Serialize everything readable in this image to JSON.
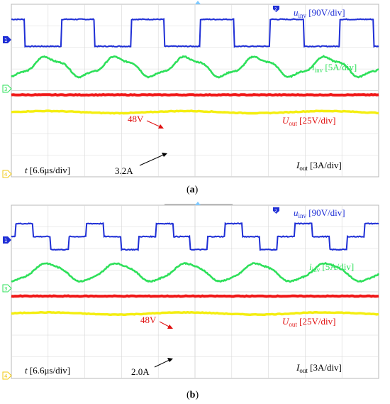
{
  "panels": [
    {
      "caption_open": "(",
      "caption_letter": "a",
      "caption_close": ")",
      "u_inv": {
        "sym": "u",
        "sub": "inv",
        "scale": " [90V/div]"
      },
      "i_inv": {
        "sym": "i",
        "sub": "inv",
        "scale": " [5A/div]"
      },
      "U_out": {
        "sym": "U",
        "sub": "out",
        "scale": " [25V/div]"
      },
      "I_out": {
        "sym": "I",
        "sub": "out",
        "scale": " [3A/div]"
      },
      "time": {
        "sym": "t",
        "scale": " [6.6μs/div]"
      },
      "annot_voltage": "48V",
      "annot_current": "3.2A",
      "channel_markers": [
        "1",
        "3",
        "2",
        "4"
      ]
    },
    {
      "caption_open": "(",
      "caption_letter": "b",
      "caption_close": ")",
      "u_inv": {
        "sym": "u",
        "sub": "inv",
        "scale": " [90V/div]"
      },
      "i_inv": {
        "sym": "i",
        "sub": "inv",
        "scale": " [5A/div]"
      },
      "U_out": {
        "sym": "U",
        "sub": "out",
        "scale": " [25V/div]"
      },
      "I_out": {
        "sym": "I",
        "sub": "out",
        "scale": " [3A/div]"
      },
      "time": {
        "sym": "t",
        "scale": " [6.6μs/div]"
      },
      "annot_voltage": "48V",
      "annot_current": "2.0A",
      "channel_markers": [
        "1",
        "3",
        "2",
        "4"
      ]
    }
  ],
  "colors": {
    "u_inv": "#1f2fd6",
    "i_inv": "#2ee05a",
    "U_out": "#f01818",
    "I_out": "#f4ee10",
    "grid": "#d8d8d8",
    "frame": "#b8b8b8",
    "annot_voltage": "#e01010",
    "text": "#000000"
  },
  "chart_data": [
    {
      "type": "line",
      "title": "",
      "x_units": "div",
      "x_per_div": "6.6μs",
      "xlim": [
        0,
        10
      ],
      "ylim": [
        -4,
        4
      ],
      "series": [
        {
          "name": "u_inv",
          "kind": "two-level square wave",
          "high": 3.3,
          "low": 2.05,
          "period_div": 1.9,
          "duty": 0.48
        },
        {
          "name": "i_inv",
          "kind": "distorted sinusoid",
          "center": 1.1,
          "amplitude": 0.42,
          "period_div": 1.9
        },
        {
          "name": "U_out",
          "value": 48,
          "unit": "V",
          "position_div": -0.2
        },
        {
          "name": "I_out",
          "value": 3.2,
          "unit": "A",
          "position_div": -1.0
        }
      ]
    },
    {
      "type": "line",
      "title": "",
      "x_units": "div",
      "x_per_div": "6.6μs",
      "xlim": [
        0,
        10
      ],
      "ylim": [
        -4,
        4
      ],
      "series": [
        {
          "name": "u_inv",
          "kind": "three-level stepped wave",
          "levels": [
            3.15,
            2.55,
            1.95
          ],
          "period_div": 1.9
        },
        {
          "name": "i_inv",
          "kind": "sinusoid",
          "center": 0.9,
          "amplitude": 0.4,
          "period_div": 1.9
        },
        {
          "name": "U_out",
          "value": 48,
          "unit": "V",
          "position_div": -0.2
        },
        {
          "name": "I_out",
          "value": 2.0,
          "unit": "A",
          "position_div": -1.0
        }
      ]
    }
  ]
}
